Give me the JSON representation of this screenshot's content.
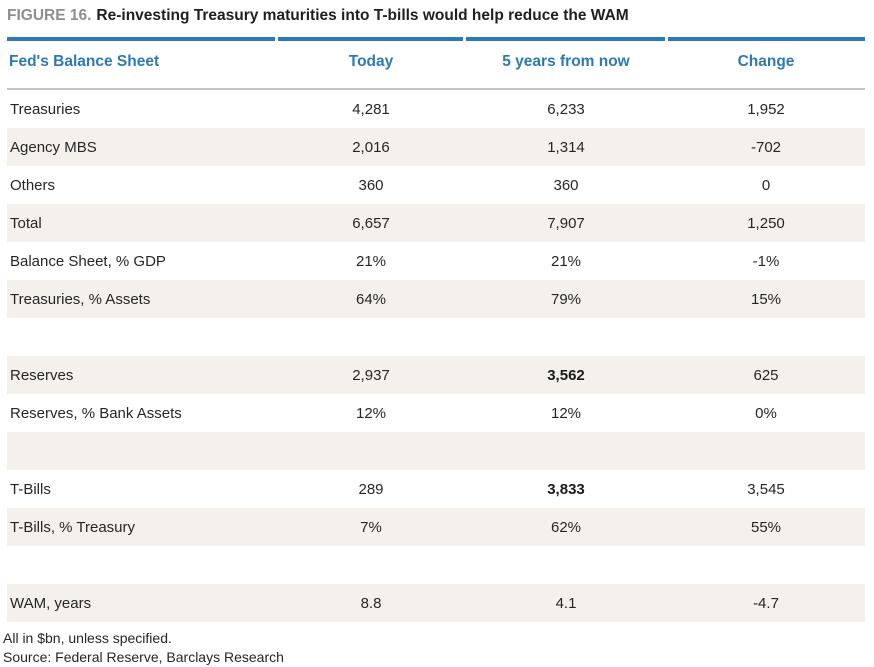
{
  "figure": {
    "label": "FIGURE 16.",
    "title": "Re-investing Treasury maturities into T-bills would help reduce the WAM"
  },
  "table": {
    "columns": [
      "Fed's Balance Sheet",
      "Today",
      "5 years from now",
      "Change"
    ],
    "rows": [
      {
        "label": "Treasuries",
        "values": [
          "4,281",
          "6,233",
          "1,952"
        ]
      },
      {
        "label": "Agency MBS",
        "values": [
          "2,016",
          "1,314",
          "-702"
        ]
      },
      {
        "label": "Others",
        "values": [
          "360",
          "360",
          "0"
        ]
      },
      {
        "label": "Total",
        "values": [
          "6,657",
          "7,907",
          "1,250"
        ]
      },
      {
        "label": "Balance Sheet, % GDP",
        "values": [
          "21%",
          "21%",
          "-1%"
        ]
      },
      {
        "label": "Treasuries, % Assets",
        "values": [
          "64%",
          "79%",
          "15%"
        ]
      },
      {
        "spacer": true
      },
      {
        "label": "Reserves",
        "values": [
          "2,937",
          "3,562",
          "625"
        ],
        "bold": [
          1
        ]
      },
      {
        "label": "Reserves, % Bank Assets",
        "values": [
          "12%",
          "12%",
          "0%"
        ]
      },
      {
        "spacer": true
      },
      {
        "label": "T-Bills",
        "values": [
          "289",
          "3,833",
          "3,545"
        ],
        "bold": [
          1
        ]
      },
      {
        "label": "T-Bills, % Treasury",
        "values": [
          "7%",
          "62%",
          "55%"
        ]
      },
      {
        "spacer": true
      },
      {
        "label": "WAM, years",
        "values": [
          "8.8",
          "4.1",
          "-4.7"
        ]
      }
    ]
  },
  "footnotes": [
    "All in $bn, unless specified.",
    "Source: Federal Reserve, Barclays Research"
  ],
  "colors": {
    "accent_blue": "#2d79b5",
    "row_beige": "#f4f0ec",
    "rule_gray": "#c3c3c3",
    "label_gray": "#8e8e8e",
    "text_dark": "#262626"
  }
}
